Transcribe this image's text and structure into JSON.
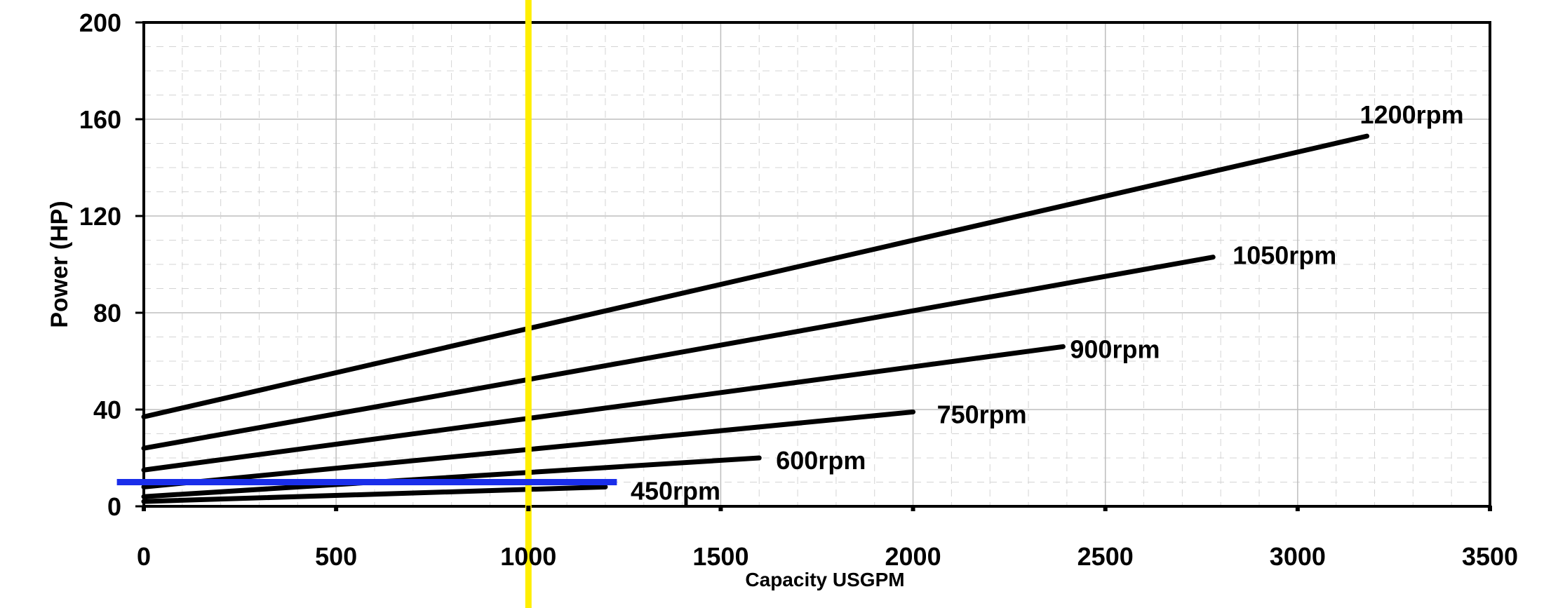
{
  "chart_data": {
    "type": "line",
    "xlabel": "Capacity USGPM",
    "ylabel": "Power (HP)",
    "xlim": [
      0,
      3500
    ],
    "ylim": [
      0,
      200
    ],
    "x_ticks": [
      0,
      500,
      1000,
      1500,
      2000,
      2500,
      3000,
      3500
    ],
    "y_ticks": [
      0,
      40,
      80,
      120,
      160,
      200
    ],
    "grid": true,
    "series": [
      {
        "name": "1200rpm",
        "color": "#000000",
        "x": [
          0,
          3180
        ],
        "y": [
          37,
          153
        ]
      },
      {
        "name": "1050rpm",
        "color": "#000000",
        "x": [
          0,
          2780
        ],
        "y": [
          24,
          103
        ]
      },
      {
        "name": "900rpm",
        "color": "#000000",
        "x": [
          0,
          2390
        ],
        "y": [
          15,
          66
        ]
      },
      {
        "name": "750rpm",
        "color": "#000000",
        "x": [
          0,
          2000
        ],
        "y": [
          8,
          39
        ]
      },
      {
        "name": "600rpm",
        "color": "#000000",
        "x": [
          0,
          1600
        ],
        "y": [
          4,
          20
        ]
      },
      {
        "name": "450rpm",
        "color": "#000000",
        "x": [
          0,
          1200
        ],
        "y": [
          2,
          8
        ]
      }
    ],
    "annotations": [
      {
        "kind": "vertical-line",
        "x": 1000,
        "color": "#ffee00"
      },
      {
        "kind": "horizontal-line",
        "y": 10,
        "x_range": [
          -70,
          1230
        ],
        "color": "#1a2eea"
      }
    ]
  }
}
